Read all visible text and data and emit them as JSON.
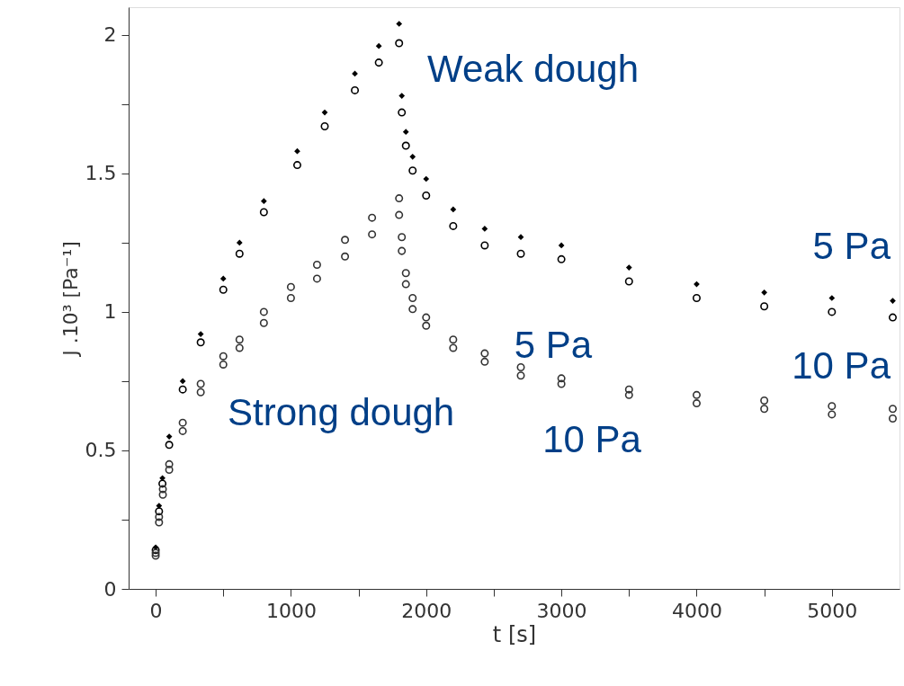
{
  "chart_data": {
    "type": "scatter",
    "xlabel": "t [s]",
    "ylabel": "J .10³ [Pa⁻¹]",
    "xlim": [
      -200,
      5500
    ],
    "ylim": [
      0,
      2.1
    ],
    "xticks": [
      0,
      {
        "value": 500,
        "label": null
      },
      1000,
      {
        "value": 1500,
        "label": null
      },
      2000,
      {
        "value": 2500,
        "label": null
      },
      3000,
      {
        "value": 3500,
        "label": null
      },
      4000,
      {
        "value": 4500,
        "label": null
      },
      5000
    ],
    "yticks": [
      0,
      {
        "value": 0.25,
        "label": null
      },
      0.5,
      {
        "value": 0.75,
        "label": null
      },
      1,
      {
        "value": 1.25,
        "label": null
      },
      1.5,
      {
        "value": 1.75,
        "label": null
      },
      2
    ],
    "series": [
      {
        "name": "5 Pa",
        "color": "#000000",
        "marker": "diamond",
        "x": [
          0,
          25,
          50,
          100,
          200,
          333,
          500,
          620,
          800,
          1047,
          1250,
          1473,
          1650,
          1800,
          1820,
          1850,
          1900,
          2000,
          2200,
          2433,
          2700,
          3000,
          3500,
          4000,
          4500,
          5000,
          5450
        ],
        "values": [
          0.15,
          0.3,
          0.4,
          0.55,
          0.75,
          0.92,
          1.12,
          1.25,
          1.4,
          1.58,
          1.72,
          1.86,
          1.96,
          2.04,
          1.78,
          1.65,
          1.56,
          1.48,
          1.37,
          1.3,
          1.27,
          1.24,
          1.16,
          1.1,
          1.07,
          1.05,
          1.04
        ]
      },
      {
        "name": "10 Pa",
        "color": "#000000",
        "marker": "circle",
        "x": [
          0,
          25,
          50,
          100,
          200,
          333,
          500,
          620,
          800,
          1047,
          1250,
          1473,
          1650,
          1800,
          1820,
          1850,
          1900,
          2000,
          2200,
          2433,
          2700,
          3000,
          3500,
          4000,
          4500,
          5000,
          5450
        ],
        "values": [
          0.14,
          0.28,
          0.38,
          0.52,
          0.72,
          0.89,
          1.08,
          1.21,
          1.36,
          1.53,
          1.67,
          1.8,
          1.9,
          1.97,
          1.72,
          1.6,
          1.51,
          1.42,
          1.31,
          1.24,
          1.21,
          1.19,
          1.11,
          1.05,
          1.02,
          1.0,
          0.98
        ]
      },
      {
        "name": "5 Pa",
        "color": "#333333",
        "marker": "circle",
        "x": [
          0,
          25,
          53,
          100,
          200,
          333,
          500,
          620,
          800,
          1000,
          1193,
          1400,
          1600,
          1800,
          1820,
          1850,
          1900,
          2000,
          2200,
          2433,
          2700,
          3000,
          3500,
          4000,
          4500,
          5000,
          5450
        ],
        "values": [
          0.13,
          0.26,
          0.36,
          0.45,
          0.6,
          0.74,
          0.84,
          0.9,
          1.0,
          1.09,
          1.17,
          1.26,
          1.34,
          1.41,
          1.27,
          1.14,
          1.05,
          0.98,
          0.9,
          0.85,
          0.8,
          0.76,
          0.72,
          0.7,
          0.68,
          0.66,
          0.65
        ]
      },
      {
        "name": "10 Pa",
        "color": "#333333",
        "marker": "circle",
        "x": [
          0,
          25,
          53,
          100,
          200,
          333,
          500,
          620,
          800,
          1000,
          1193,
          1400,
          1600,
          1800,
          1820,
          1850,
          1900,
          2000,
          2200,
          2433,
          2700,
          3000,
          3500,
          4000,
          4500,
          5000,
          5450
        ],
        "values": [
          0.12,
          0.24,
          0.34,
          0.43,
          0.57,
          0.71,
          0.81,
          0.87,
          0.96,
          1.05,
          1.12,
          1.2,
          1.28,
          1.35,
          1.22,
          1.1,
          1.01,
          0.95,
          0.87,
          0.82,
          0.77,
          0.74,
          0.7,
          0.67,
          0.65,
          0.63,
          0.615
        ]
      }
    ],
    "annotations": [
      "Weak dough",
      "Strong dough"
    ]
  }
}
